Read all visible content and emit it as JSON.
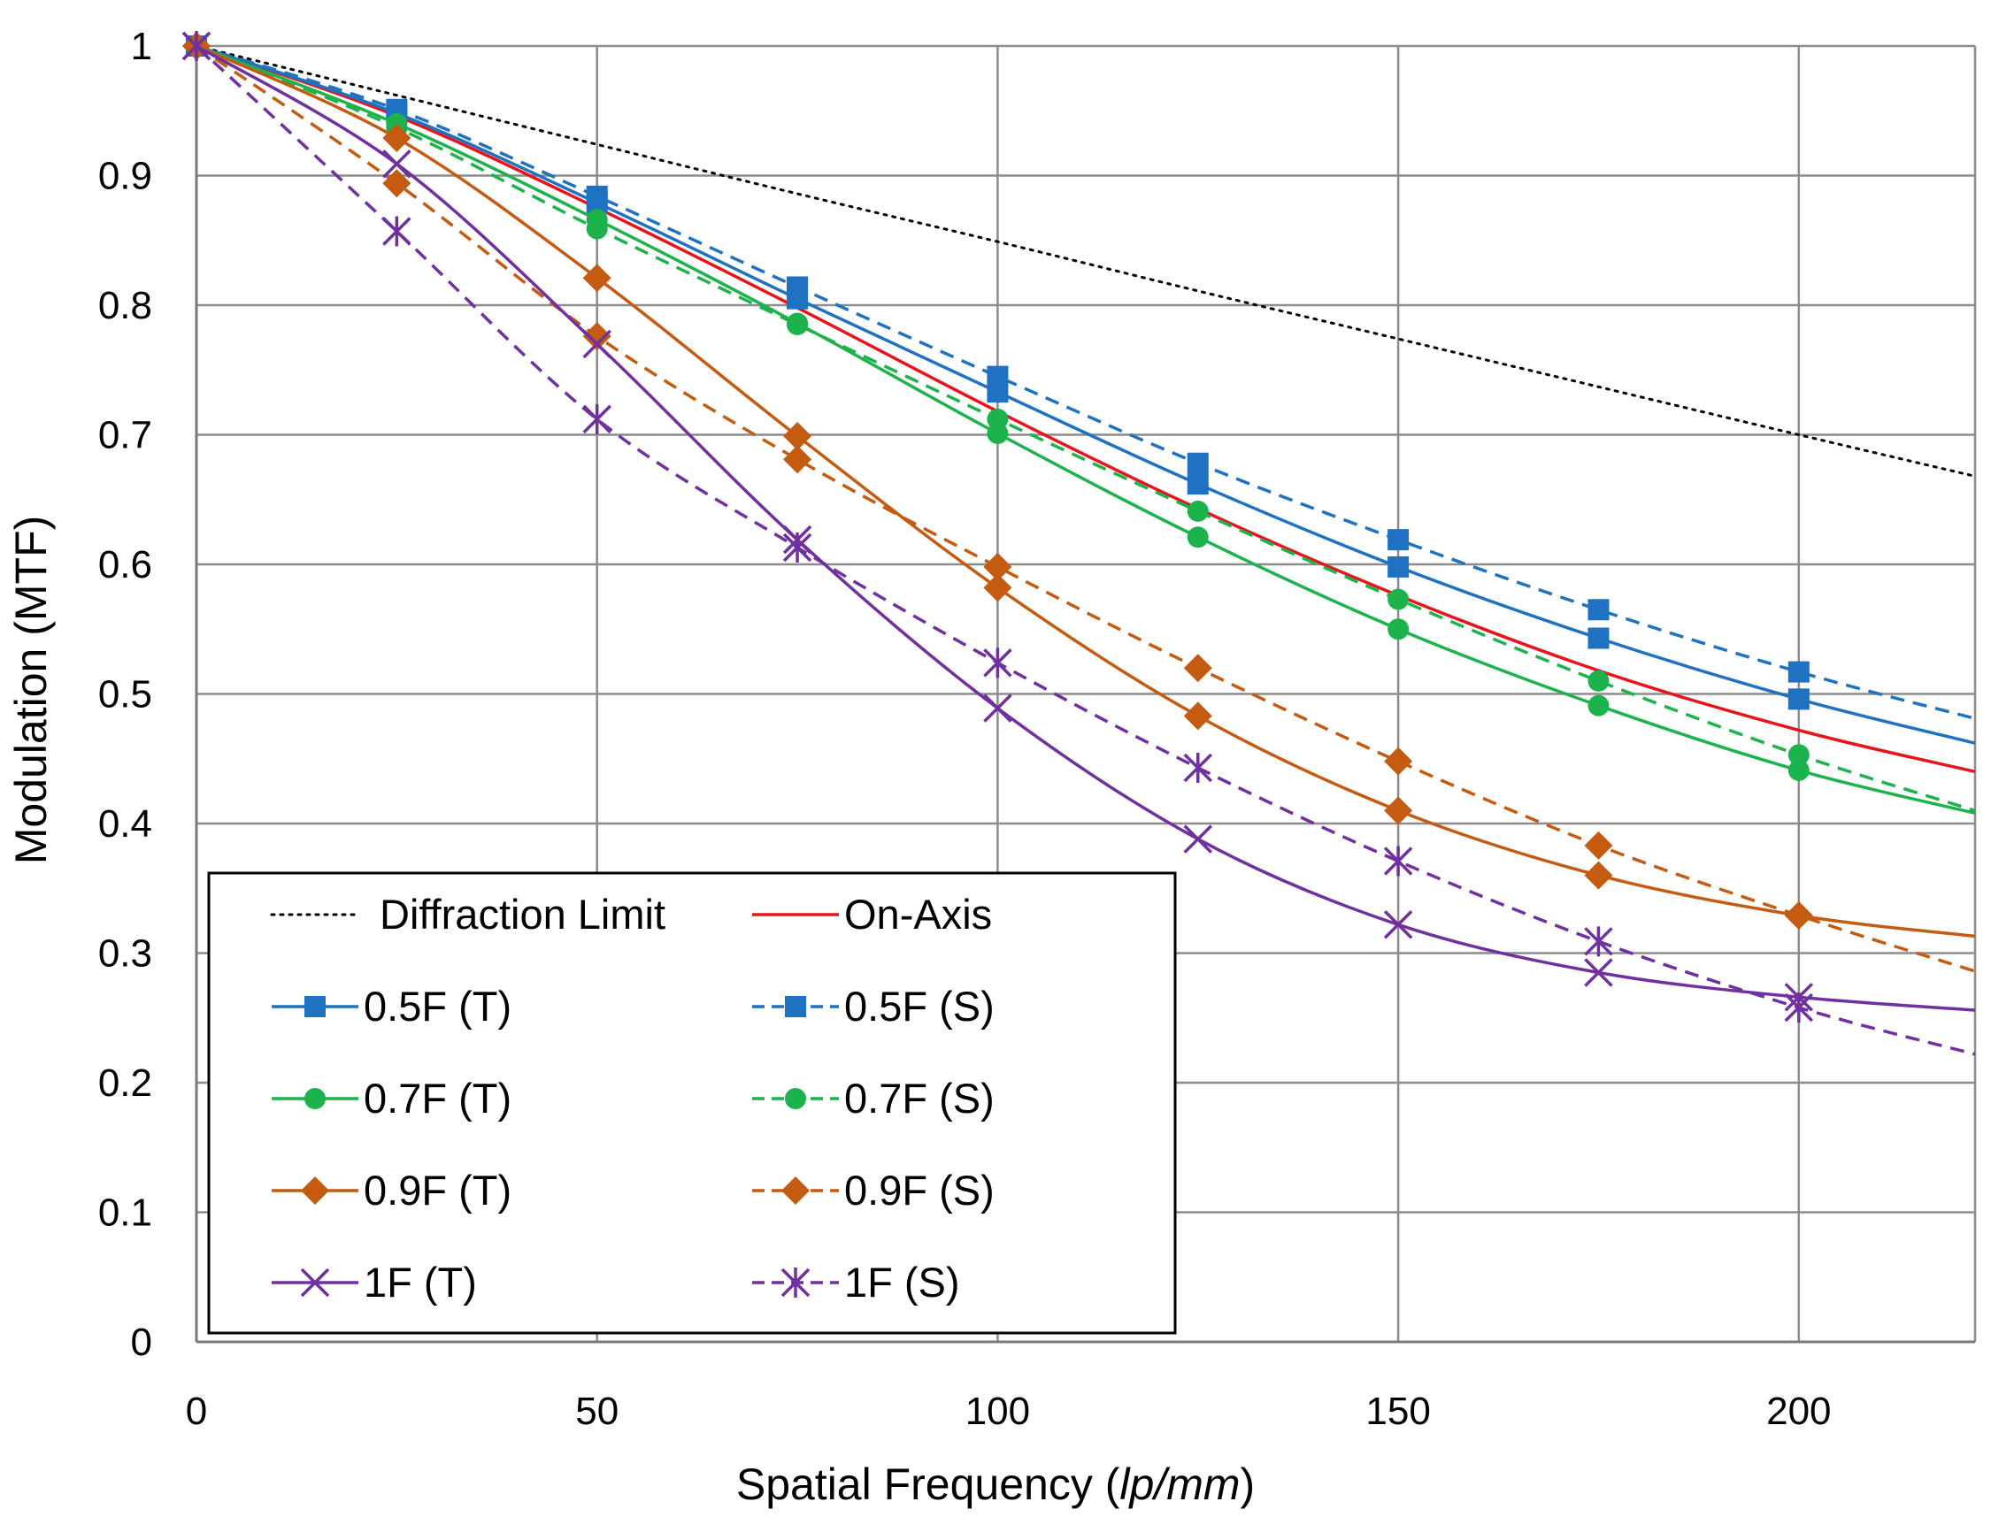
{
  "chart_data": {
    "type": "line",
    "title": "",
    "xlabel_prefix": "Spatial Frequency (",
    "xlabel_italic": "lp/mm",
    "xlabel_suffix": ")",
    "ylabel": "Modulation (MTF)",
    "xlim": [
      0,
      222
    ],
    "ylim": [
      0,
      1
    ],
    "x_ticks": [
      0,
      50,
      100,
      150,
      200
    ],
    "x_tick_labels": [
      "0",
      "50",
      "100",
      "150",
      "200"
    ],
    "y_ticks": [
      0,
      0.1,
      0.2,
      0.3,
      0.4,
      0.5,
      0.6,
      0.7,
      0.8,
      0.9,
      1
    ],
    "y_tick_labels": [
      "0",
      "0.1",
      "0.2",
      "0.3",
      "0.4",
      "0.5",
      "0.6",
      "0.7",
      "0.8",
      "0.9",
      "1"
    ],
    "grid": true,
    "legend_position": "bottom-left",
    "series": [
      {
        "name": "Diffraction Limit",
        "color": "#000000",
        "line": "dotted",
        "marker": "none",
        "x": [
          0,
          25,
          50,
          75,
          100,
          125,
          150,
          175,
          200,
          222
        ],
        "y": [
          1.0,
          0.962,
          0.924,
          0.886,
          0.849,
          0.811,
          0.774,
          0.737,
          0.7,
          0.668
        ]
      },
      {
        "name": "On-Axis",
        "color": "#e8141c",
        "line": "solid",
        "marker": "none",
        "x": [
          0,
          25,
          50,
          75,
          100,
          125,
          150,
          175,
          200,
          222
        ],
        "y": [
          1.0,
          0.946,
          0.875,
          0.798,
          0.718,
          0.643,
          0.576,
          0.518,
          0.472,
          0.44
        ]
      },
      {
        "name": "0.5F (T)",
        "color": "#1f71c1",
        "line": "solid",
        "marker": "square",
        "x": [
          0,
          25,
          50,
          75,
          100,
          125,
          150,
          175,
          200,
          222
        ],
        "y": [
          1.0,
          0.948,
          0.879,
          0.805,
          0.733,
          0.662,
          0.598,
          0.543,
          0.496,
          0.462
        ]
      },
      {
        "name": "0.5F (S)",
        "color": "#1f71c1",
        "line": "dashed",
        "marker": "square",
        "x": [
          0,
          25,
          50,
          75,
          100,
          125,
          150,
          175,
          200,
          222
        ],
        "y": [
          1.0,
          0.951,
          0.884,
          0.814,
          0.745,
          0.678,
          0.619,
          0.565,
          0.517,
          0.481
        ]
      },
      {
        "name": "0.7F (T)",
        "color": "#1db34c",
        "line": "solid",
        "marker": "circle",
        "x": [
          0,
          25,
          50,
          75,
          100,
          125,
          150,
          175,
          200,
          222
        ],
        "y": [
          1.0,
          0.94,
          0.866,
          0.786,
          0.701,
          0.621,
          0.55,
          0.491,
          0.441,
          0.408
        ]
      },
      {
        "name": "0.7F (S)",
        "color": "#1db34c",
        "line": "dashed",
        "marker": "circle",
        "x": [
          0,
          25,
          50,
          75,
          100,
          125,
          150,
          175,
          200,
          222
        ],
        "y": [
          1.0,
          0.937,
          0.859,
          0.785,
          0.712,
          0.641,
          0.573,
          0.51,
          0.453,
          0.41
        ]
      },
      {
        "name": "0.9F (T)",
        "color": "#c55a11",
        "line": "solid",
        "marker": "diamond",
        "x": [
          0,
          25,
          50,
          75,
          100,
          125,
          150,
          175,
          200,
          222
        ],
        "y": [
          1.0,
          0.929,
          0.821,
          0.699,
          0.582,
          0.483,
          0.41,
          0.36,
          0.329,
          0.313
        ]
      },
      {
        "name": "0.9F (S)",
        "color": "#c55a11",
        "line": "dashed",
        "marker": "diamond",
        "x": [
          0,
          25,
          50,
          75,
          100,
          125,
          150,
          175,
          200,
          222
        ],
        "y": [
          1.0,
          0.894,
          0.776,
          0.681,
          0.598,
          0.52,
          0.448,
          0.383,
          0.329,
          0.286
        ]
      },
      {
        "name": "1F (T)",
        "color": "#7030a0",
        "line": "solid",
        "marker": "x",
        "x": [
          0,
          25,
          50,
          75,
          100,
          125,
          150,
          175,
          200,
          222
        ],
        "y": [
          1.0,
          0.909,
          0.77,
          0.619,
          0.489,
          0.388,
          0.322,
          0.285,
          0.266,
          0.256
        ]
      },
      {
        "name": "1F (S)",
        "color": "#7030a0",
        "line": "dashed",
        "marker": "star",
        "x": [
          0,
          25,
          50,
          75,
          100,
          125,
          150,
          175,
          200,
          222
        ],
        "y": [
          1.0,
          0.857,
          0.712,
          0.613,
          0.524,
          0.443,
          0.371,
          0.309,
          0.258,
          0.222
        ]
      }
    ]
  }
}
